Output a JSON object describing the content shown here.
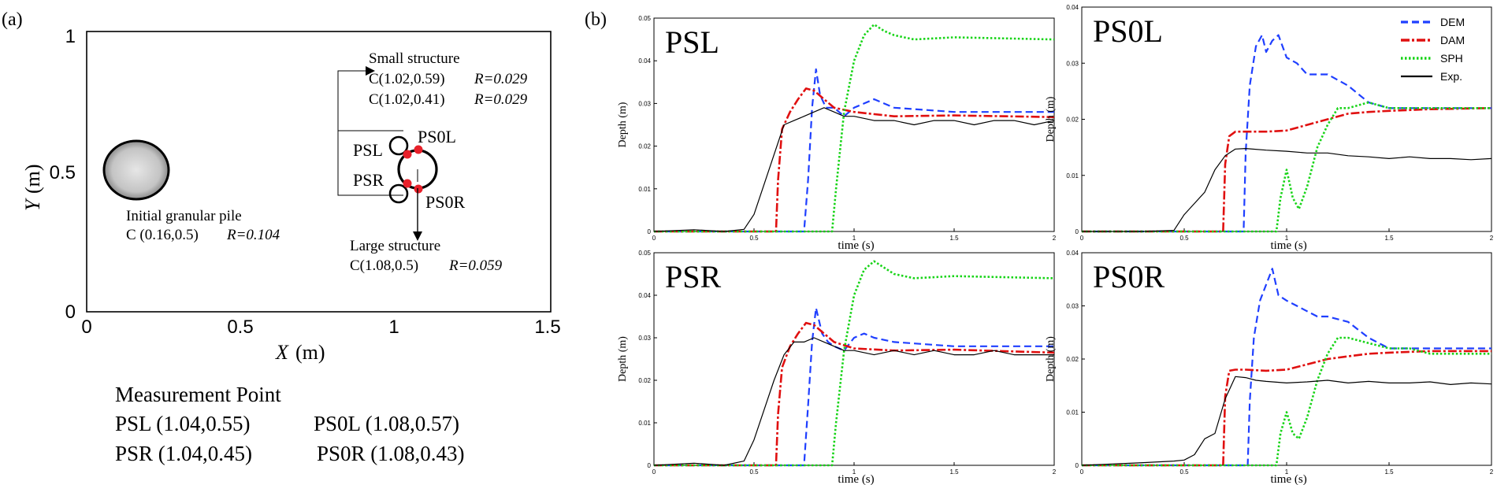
{
  "colors": {
    "dem": "#1f3fff",
    "dam": "#e01010",
    "sph": "#18d418",
    "exp": "#000000",
    "marker": "#e8202a",
    "pile": "#b8b8b8"
  },
  "panel_a": {
    "label": "(a)",
    "x_axis_label": "X",
    "y_axis_label": "Y",
    "axis_unit": "(m)",
    "x_ticks": [
      "0",
      "0.5",
      "1",
      "1.5"
    ],
    "y_ticks": [
      "0",
      "0.5",
      "1"
    ],
    "pile_label": "Initial granular pile",
    "pile_center": "C (0.16,0.5)",
    "pile_radius": "R=0.104",
    "small_title": "Small structure",
    "small_c1": "C(1.02,0.59)",
    "small_c2": "C(1.02,0.41)",
    "small_r": "R=0.029",
    "large_title": "Large structure",
    "large_c": "C(1.08,0.5)",
    "large_r": "R=0.059",
    "points": {
      "psl": "PSL",
      "ps0l": "PS0L",
      "psr": "PSR",
      "ps0r": "PS0R"
    },
    "mp_title": "Measurement Point",
    "mp_psl": "PSL (1.04,0.55)",
    "mp_ps0l": "PS0L (1.08,0.57)",
    "mp_psr": "PSR (1.04,0.45)",
    "mp_ps0r": "PS0R (1.08,0.43)"
  },
  "panel_b_label": "(b)",
  "legend": [
    "DEM",
    "DAM",
    "SPH",
    "Exp."
  ],
  "chart_data": [
    {
      "type": "line",
      "title": "PSL",
      "xlabel": "time (s)",
      "ylabel": "Depth (m)",
      "xlim": [
        0,
        2
      ],
      "ylim": [
        0,
        0.05
      ],
      "x_ticks": [
        "0",
        "0.5",
        "1",
        "1.5",
        "2"
      ],
      "y_ticks": [
        "0",
        "0.01",
        "0.02",
        "0.03",
        "0.04",
        "0.05"
      ],
      "series": [
        {
          "name": "DEM",
          "x": [
            0,
            0.75,
            0.77,
            0.79,
            0.81,
            0.83,
            0.86,
            0.9,
            0.95,
            1.0,
            1.05,
            1.1,
            1.2,
            1.5,
            2.0
          ],
          "y": [
            0,
            0,
            0.012,
            0.029,
            0.038,
            0.032,
            0.029,
            0.029,
            0.027,
            0.029,
            0.03,
            0.031,
            0.029,
            0.028,
            0.028
          ]
        },
        {
          "name": "DAM",
          "x": [
            0,
            0.61,
            0.62,
            0.64,
            0.68,
            0.72,
            0.76,
            0.8,
            0.85,
            0.9,
            1.0,
            1.2,
            1.5,
            2.0
          ],
          "y": [
            0,
            0,
            0.012,
            0.024,
            0.028,
            0.031,
            0.0335,
            0.033,
            0.031,
            0.029,
            0.028,
            0.027,
            0.0272,
            0.0268
          ]
        },
        {
          "name": "SPH",
          "x": [
            0,
            0.89,
            0.91,
            0.95,
            1.0,
            1.05,
            1.1,
            1.15,
            1.2,
            1.3,
            1.5,
            2.0
          ],
          "y": [
            0,
            0,
            0.01,
            0.028,
            0.04,
            0.046,
            0.0485,
            0.047,
            0.046,
            0.045,
            0.0455,
            0.045
          ]
        },
        {
          "name": "Exp.",
          "x": [
            0,
            0.2,
            0.35,
            0.45,
            0.5,
            0.55,
            0.6,
            0.65,
            0.7,
            0.75,
            0.8,
            0.85,
            0.9,
            0.95,
            1.0,
            1.1,
            1.2,
            1.3,
            1.4,
            1.5,
            1.6,
            1.7,
            1.8,
            1.9,
            2.0
          ],
          "y": [
            0,
            0.0004,
            0,
            0.0005,
            0.004,
            0.011,
            0.018,
            0.025,
            0.026,
            0.027,
            0.028,
            0.029,
            0.028,
            0.027,
            0.027,
            0.026,
            0.026,
            0.025,
            0.026,
            0.026,
            0.025,
            0.026,
            0.026,
            0.025,
            0.026
          ]
        }
      ]
    },
    {
      "type": "line",
      "title": "PS0L",
      "xlabel": "time (s)",
      "ylabel": "Depth (m)",
      "xlim": [
        0,
        2
      ],
      "ylim": [
        0,
        0.04
      ],
      "x_ticks": [
        "0",
        "0.5",
        "1",
        "1.5",
        "2"
      ],
      "y_ticks": [
        "0",
        "0.01",
        "0.02",
        "0.03",
        "0.04"
      ],
      "series": [
        {
          "name": "DEM",
          "x": [
            0,
            0.79,
            0.8,
            0.82,
            0.85,
            0.88,
            0.9,
            0.93,
            0.96,
            1.0,
            1.05,
            1.1,
            1.2,
            1.3,
            1.4,
            1.5,
            1.6,
            1.8,
            2.0
          ],
          "y": [
            0,
            0,
            0.014,
            0.026,
            0.033,
            0.035,
            0.032,
            0.034,
            0.035,
            0.031,
            0.03,
            0.028,
            0.028,
            0.026,
            0.023,
            0.022,
            0.022,
            0.022,
            0.022
          ]
        },
        {
          "name": "DAM",
          "x": [
            0,
            0.69,
            0.7,
            0.72,
            0.75,
            0.8,
            0.9,
            1.0,
            1.1,
            1.2,
            1.3,
            1.4,
            1.5,
            1.7,
            2.0
          ],
          "y": [
            0,
            0,
            0.012,
            0.017,
            0.0178,
            0.0178,
            0.0178,
            0.018,
            0.019,
            0.02,
            0.021,
            0.0213,
            0.0215,
            0.0218,
            0.022
          ]
        },
        {
          "name": "SPH",
          "x": [
            0,
            0.95,
            0.97,
            1.0,
            1.03,
            1.06,
            1.1,
            1.15,
            1.2,
            1.25,
            1.3,
            1.4,
            1.5,
            1.6,
            1.7,
            1.8,
            2.0
          ],
          "y": [
            0,
            0,
            0.006,
            0.011,
            0.006,
            0.004,
            0.008,
            0.015,
            0.019,
            0.022,
            0.022,
            0.023,
            0.022,
            0.022,
            0.022,
            0.022,
            0.022
          ]
        },
        {
          "name": "Exp.",
          "x": [
            0,
            0.3,
            0.45,
            0.5,
            0.55,
            0.6,
            0.65,
            0.7,
            0.75,
            0.8,
            0.9,
            1.0,
            1.1,
            1.2,
            1.3,
            1.4,
            1.5,
            1.6,
            1.7,
            1.8,
            1.9,
            2.0
          ],
          "y": [
            0,
            0,
            0.0002,
            0.003,
            0.005,
            0.007,
            0.011,
            0.0135,
            0.0147,
            0.0148,
            0.0145,
            0.0143,
            0.014,
            0.014,
            0.0135,
            0.0133,
            0.013,
            0.0133,
            0.013,
            0.013,
            0.0128,
            0.013
          ]
        }
      ]
    },
    {
      "type": "line",
      "title": "PSR",
      "xlabel": "time (s)",
      "ylabel": "Depth (m)",
      "xlim": [
        0,
        2
      ],
      "ylim": [
        0,
        0.05
      ],
      "x_ticks": [
        "0",
        "0.5",
        "1",
        "1.5",
        "2"
      ],
      "y_ticks": [
        "0",
        "0.01",
        "0.02",
        "0.03",
        "0.04",
        "0.05"
      ],
      "series": [
        {
          "name": "DEM",
          "x": [
            0,
            0.75,
            0.77,
            0.79,
            0.81,
            0.84,
            0.87,
            0.9,
            0.95,
            1.0,
            1.05,
            1.1,
            1.2,
            1.5,
            2.0
          ],
          "y": [
            0,
            0,
            0.014,
            0.029,
            0.037,
            0.031,
            0.029,
            0.028,
            0.027,
            0.03,
            0.031,
            0.03,
            0.029,
            0.028,
            0.028
          ]
        },
        {
          "name": "DAM",
          "x": [
            0,
            0.61,
            0.62,
            0.64,
            0.68,
            0.72,
            0.76,
            0.8,
            0.85,
            0.9,
            1.0,
            1.2,
            1.5,
            2.0
          ],
          "y": [
            0,
            0,
            0.012,
            0.023,
            0.028,
            0.031,
            0.0335,
            0.033,
            0.031,
            0.029,
            0.0275,
            0.027,
            0.0272,
            0.0265
          ]
        },
        {
          "name": "SPH",
          "x": [
            0,
            0.89,
            0.91,
            0.95,
            1.0,
            1.05,
            1.1,
            1.15,
            1.2,
            1.3,
            1.5,
            2.0
          ],
          "y": [
            0,
            0,
            0.01,
            0.027,
            0.04,
            0.046,
            0.048,
            0.0465,
            0.045,
            0.044,
            0.0445,
            0.044
          ]
        },
        {
          "name": "Exp.",
          "x": [
            0,
            0.2,
            0.35,
            0.45,
            0.5,
            0.55,
            0.6,
            0.65,
            0.7,
            0.75,
            0.8,
            0.85,
            0.9,
            0.95,
            1.0,
            1.1,
            1.2,
            1.3,
            1.4,
            1.5,
            1.6,
            1.7,
            1.8,
            1.9,
            2.0
          ],
          "y": [
            0,
            0.0005,
            0,
            0.001,
            0.006,
            0.013,
            0.02,
            0.026,
            0.029,
            0.029,
            0.03,
            0.029,
            0.028,
            0.027,
            0.027,
            0.026,
            0.027,
            0.026,
            0.027,
            0.026,
            0.026,
            0.027,
            0.026,
            0.026,
            0.026
          ]
        }
      ]
    },
    {
      "type": "line",
      "title": "PS0R",
      "xlabel": "time (s)",
      "ylabel": "Depth (m)",
      "xlim": [
        0,
        2
      ],
      "ylim": [
        0,
        0.04
      ],
      "x_ticks": [
        "0",
        "0.5",
        "1",
        "1.5",
        "2"
      ],
      "y_ticks": [
        "0",
        "0.01",
        "0.02",
        "0.03",
        "0.04"
      ],
      "series": [
        {
          "name": "DEM",
          "x": [
            0,
            0.81,
            0.82,
            0.84,
            0.87,
            0.9,
            0.93,
            0.96,
            1.0,
            1.05,
            1.1,
            1.15,
            1.2,
            1.3,
            1.4,
            1.5,
            1.6,
            1.8,
            2.0
          ],
          "y": [
            0,
            0,
            0.012,
            0.024,
            0.031,
            0.034,
            0.037,
            0.032,
            0.031,
            0.03,
            0.029,
            0.028,
            0.028,
            0.027,
            0.024,
            0.022,
            0.022,
            0.022,
            0.022
          ]
        },
        {
          "name": "DAM",
          "x": [
            0,
            0.69,
            0.7,
            0.72,
            0.75,
            0.8,
            0.9,
            1.0,
            1.1,
            1.2,
            1.3,
            1.4,
            1.5,
            1.7,
            2.0
          ],
          "y": [
            0,
            0,
            0.013,
            0.0178,
            0.018,
            0.018,
            0.0178,
            0.018,
            0.019,
            0.02,
            0.0205,
            0.021,
            0.0212,
            0.0215,
            0.0215
          ]
        },
        {
          "name": "SPH",
          "x": [
            0,
            0.95,
            0.97,
            1.0,
            1.03,
            1.06,
            1.1,
            1.15,
            1.2,
            1.25,
            1.3,
            1.4,
            1.5,
            1.6,
            1.7,
            1.8,
            2.0
          ],
          "y": [
            0,
            0,
            0.006,
            0.01,
            0.006,
            0.005,
            0.009,
            0.016,
            0.021,
            0.024,
            0.024,
            0.023,
            0.022,
            0.022,
            0.021,
            0.021,
            0.021
          ]
        },
        {
          "name": "Exp.",
          "x": [
            0,
            0.3,
            0.45,
            0.5,
            0.55,
            0.6,
            0.65,
            0.7,
            0.75,
            0.8,
            0.85,
            0.9,
            1.0,
            1.1,
            1.2,
            1.3,
            1.4,
            1.5,
            1.6,
            1.7,
            1.8,
            1.9,
            2.0
          ],
          "y": [
            0,
            0.0005,
            0.0008,
            0.001,
            0.002,
            0.005,
            0.006,
            0.0125,
            0.0167,
            0.0165,
            0.016,
            0.0158,
            0.0155,
            0.0157,
            0.016,
            0.0155,
            0.0158,
            0.0155,
            0.0155,
            0.0157,
            0.0152,
            0.0155,
            0.0153
          ]
        }
      ]
    }
  ]
}
